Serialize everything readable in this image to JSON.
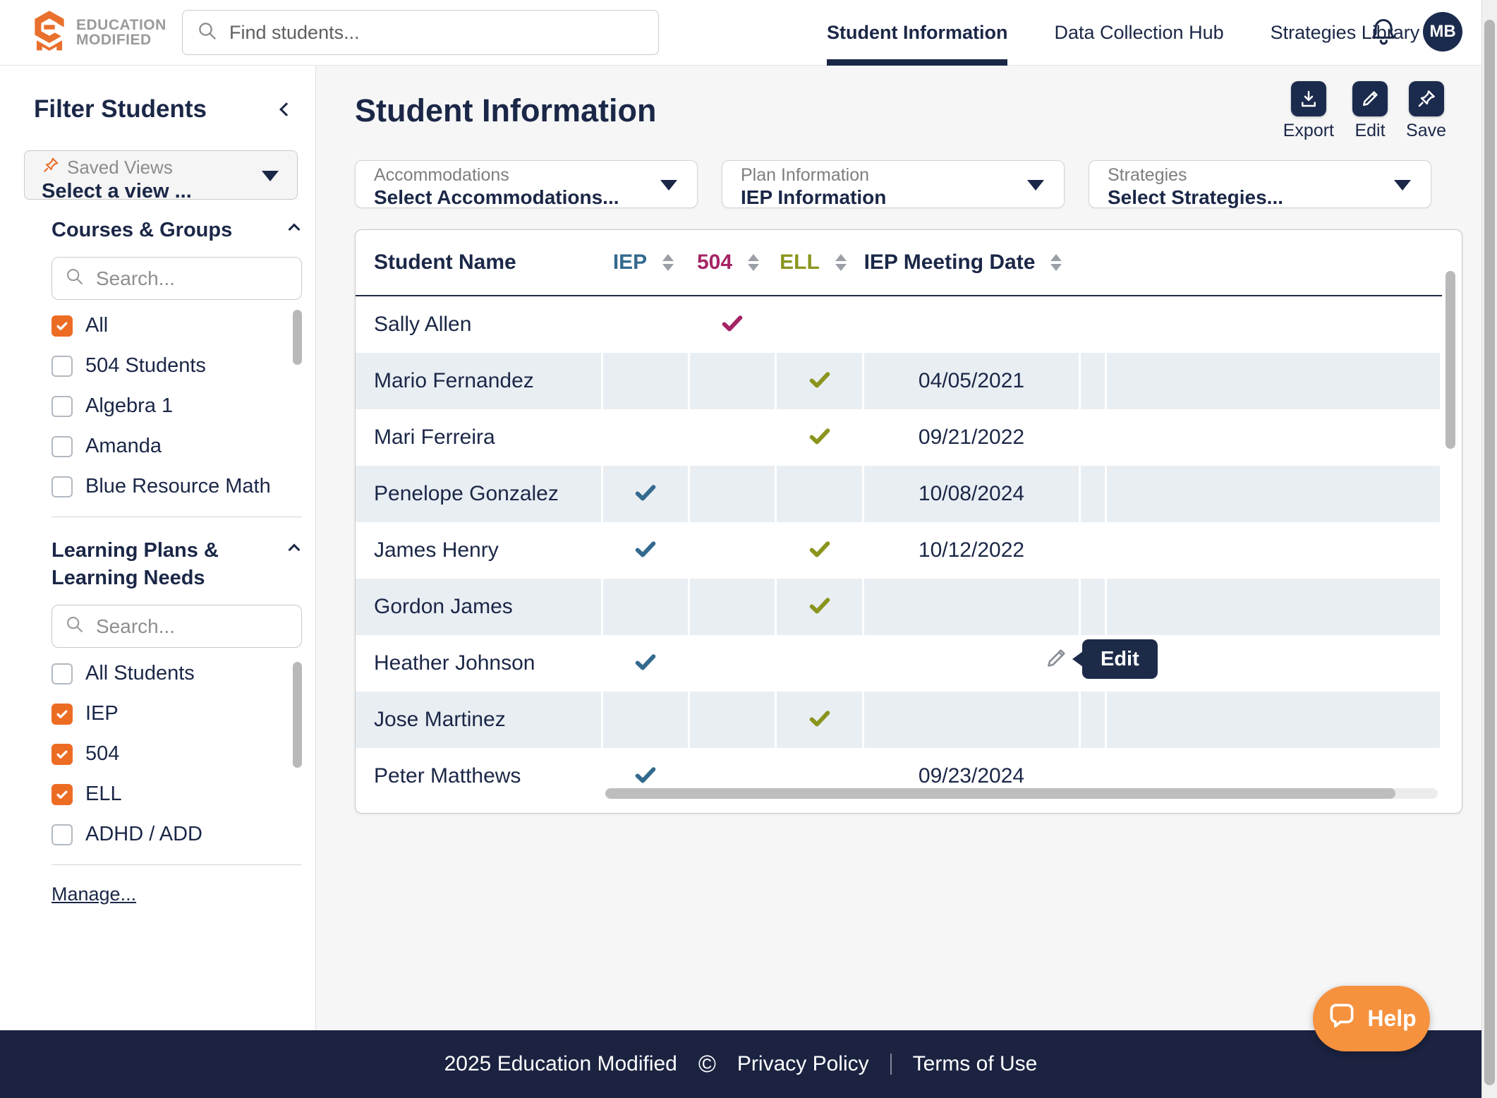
{
  "header": {
    "logo": {
      "line1": "EDUCATION",
      "line2": "MODIFIED"
    },
    "search": {
      "placeholder": "Find students..."
    },
    "nav": [
      {
        "label": "Student Information",
        "active": true
      },
      {
        "label": "Data Collection Hub",
        "active": false
      },
      {
        "label": "Strategies Library",
        "active": false
      }
    ],
    "avatar": "MB"
  },
  "sidebar": {
    "title": "Filter Students",
    "saved_views": {
      "label": "Saved Views",
      "value": "Select a view ..."
    },
    "sections": [
      {
        "title": "Courses & Groups",
        "search_placeholder": "Search...",
        "items": [
          {
            "label": "All",
            "checked": true
          },
          {
            "label": "504 Students",
            "checked": false
          },
          {
            "label": "Algebra 1",
            "checked": false
          },
          {
            "label": "Amanda",
            "checked": false
          },
          {
            "label": "Blue Resource Math",
            "checked": false
          }
        ]
      },
      {
        "title": "Learning Plans & Learning Needs",
        "search_placeholder": "Search...",
        "items": [
          {
            "label": "All Students",
            "checked": false
          },
          {
            "label": "IEP",
            "checked": true
          },
          {
            "label": "504",
            "checked": true
          },
          {
            "label": "ELL",
            "checked": true
          },
          {
            "label": "ADHD / ADD",
            "checked": false
          }
        ]
      }
    ],
    "manage_link": "Manage..."
  },
  "main": {
    "title": "Student Information",
    "actions": [
      {
        "label": "Export",
        "icon": "download"
      },
      {
        "label": "Edit",
        "icon": "pencil"
      },
      {
        "label": "Save",
        "icon": "pin"
      }
    ],
    "filters": [
      {
        "label": "Accommodations",
        "value": "Select Accommodations..."
      },
      {
        "label": "Plan Information",
        "value": "IEP Information"
      },
      {
        "label": "Strategies",
        "value": "Select Strategies..."
      }
    ],
    "table": {
      "columns": [
        {
          "key": "name",
          "label": "Student Name",
          "color": "#1b2747",
          "sortable": false
        },
        {
          "key": "iep",
          "label": "IEP",
          "color": "#336a8e",
          "sortable": true
        },
        {
          "key": "p504",
          "label": "504",
          "color": "#a52466",
          "sortable": true
        },
        {
          "key": "ell",
          "label": "ELL",
          "color": "#8b951d",
          "sortable": true
        },
        {
          "key": "meeting_date",
          "label": "IEP Meeting Date",
          "color": "#1b2747",
          "sortable": true
        }
      ],
      "rows": [
        {
          "name": "Sally Allen",
          "iep": false,
          "p504": true,
          "ell": false,
          "meeting_date": ""
        },
        {
          "name": "Mario Fernandez",
          "iep": false,
          "p504": false,
          "ell": true,
          "meeting_date": "04/05/2021"
        },
        {
          "name": "Mari Ferreira",
          "iep": false,
          "p504": false,
          "ell": true,
          "meeting_date": "09/21/2022"
        },
        {
          "name": "Penelope Gonzalez",
          "iep": true,
          "p504": false,
          "ell": false,
          "meeting_date": "10/08/2024"
        },
        {
          "name": "James Henry",
          "iep": true,
          "p504": false,
          "ell": true,
          "meeting_date": "10/12/2022"
        },
        {
          "name": "Gordon James",
          "iep": false,
          "p504": false,
          "ell": true,
          "meeting_date": ""
        },
        {
          "name": "Heather Johnson",
          "iep": true,
          "p504": false,
          "ell": false,
          "meeting_date": ""
        },
        {
          "name": "Jose Martinez",
          "iep": false,
          "p504": false,
          "ell": true,
          "meeting_date": ""
        },
        {
          "name": "Peter Matthews",
          "iep": true,
          "p504": false,
          "ell": false,
          "meeting_date": "09/23/2024"
        }
      ],
      "edit_tooltip": "Edit"
    }
  },
  "footer": {
    "copyright": "2025 Education Modified",
    "symbol": "©",
    "links": [
      "Privacy Policy",
      "Terms of Use"
    ]
  },
  "help_button": "Help",
  "colors": {
    "navy": "#1b2747",
    "button_navy": "#1b2b4d",
    "orange_accent": "#ed6c24",
    "help_orange": "#f6913e",
    "iep_blue": "#336a8e",
    "plan504_magenta": "#a52466",
    "ell_olive": "#8b951d",
    "row_stripe": "#e9eef3"
  }
}
